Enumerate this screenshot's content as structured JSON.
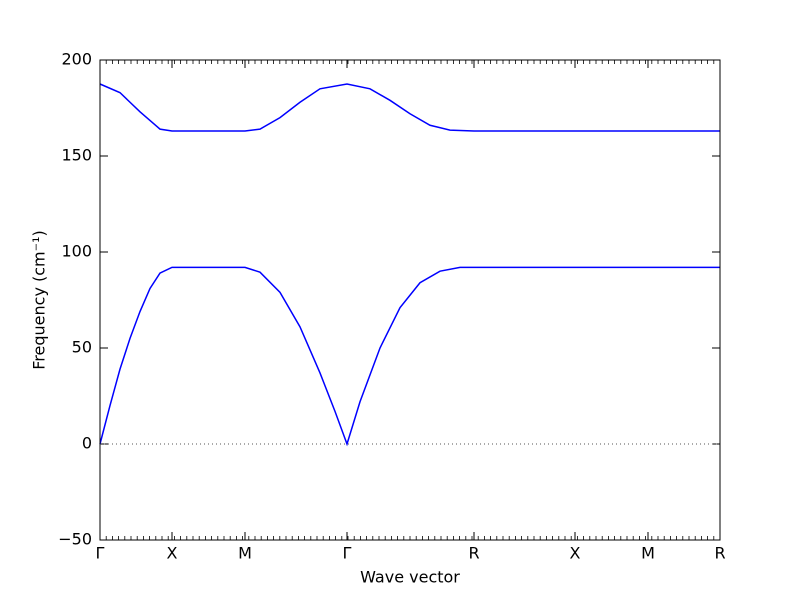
{
  "chart_data": {
    "type": "line",
    "xlabel": "Wave vector",
    "ylabel": "Frequency (cm⁻¹)",
    "xlim": [
      0,
      6.2
    ],
    "ylim": [
      -50,
      200
    ],
    "xticks": [
      {
        "value": 0,
        "label": "Γ"
      },
      {
        "value": 0.72,
        "label": "X"
      },
      {
        "value": 1.45,
        "label": "M"
      },
      {
        "value": 2.47,
        "label": "Γ"
      },
      {
        "value": 3.74,
        "label": "R"
      },
      {
        "value": 4.75,
        "label": "X"
      },
      {
        "value": 5.48,
        "label": "M"
      },
      {
        "value": 6.2,
        "label": "R"
      }
    ],
    "yticks": [
      {
        "value": -50,
        "label": "−50"
      },
      0,
      50,
      100,
      150,
      200
    ],
    "hline": 0,
    "series": [
      {
        "color": "#0000ff",
        "x": [
          0,
          0.1,
          0.2,
          0.3,
          0.4,
          0.5,
          0.6,
          0.72,
          1.45,
          1.6,
          1.8,
          2.0,
          2.2,
          2.35,
          2.47,
          2.6,
          2.8,
          3.0,
          3.2,
          3.4,
          3.6,
          3.74,
          6.2
        ],
        "values": [
          0,
          20,
          39,
          55,
          69,
          81,
          89,
          92,
          92,
          89.5,
          79,
          61,
          37,
          17,
          0,
          22,
          50,
          71,
          84,
          90,
          92,
          92,
          92
        ]
      },
      {
        "color": "#0000ff",
        "x": [
          0,
          0.2,
          0.4,
          0.6,
          0.72,
          1.45,
          1.6,
          1.8,
          2.0,
          2.2,
          2.47,
          2.7,
          2.9,
          3.1,
          3.3,
          3.5,
          3.74,
          6.2
        ],
        "values": [
          187.5,
          183,
          173,
          164,
          163,
          163,
          164,
          170,
          178,
          185,
          187.5,
          185,
          179,
          172,
          166,
          163.5,
          163,
          163
        ]
      }
    ]
  }
}
